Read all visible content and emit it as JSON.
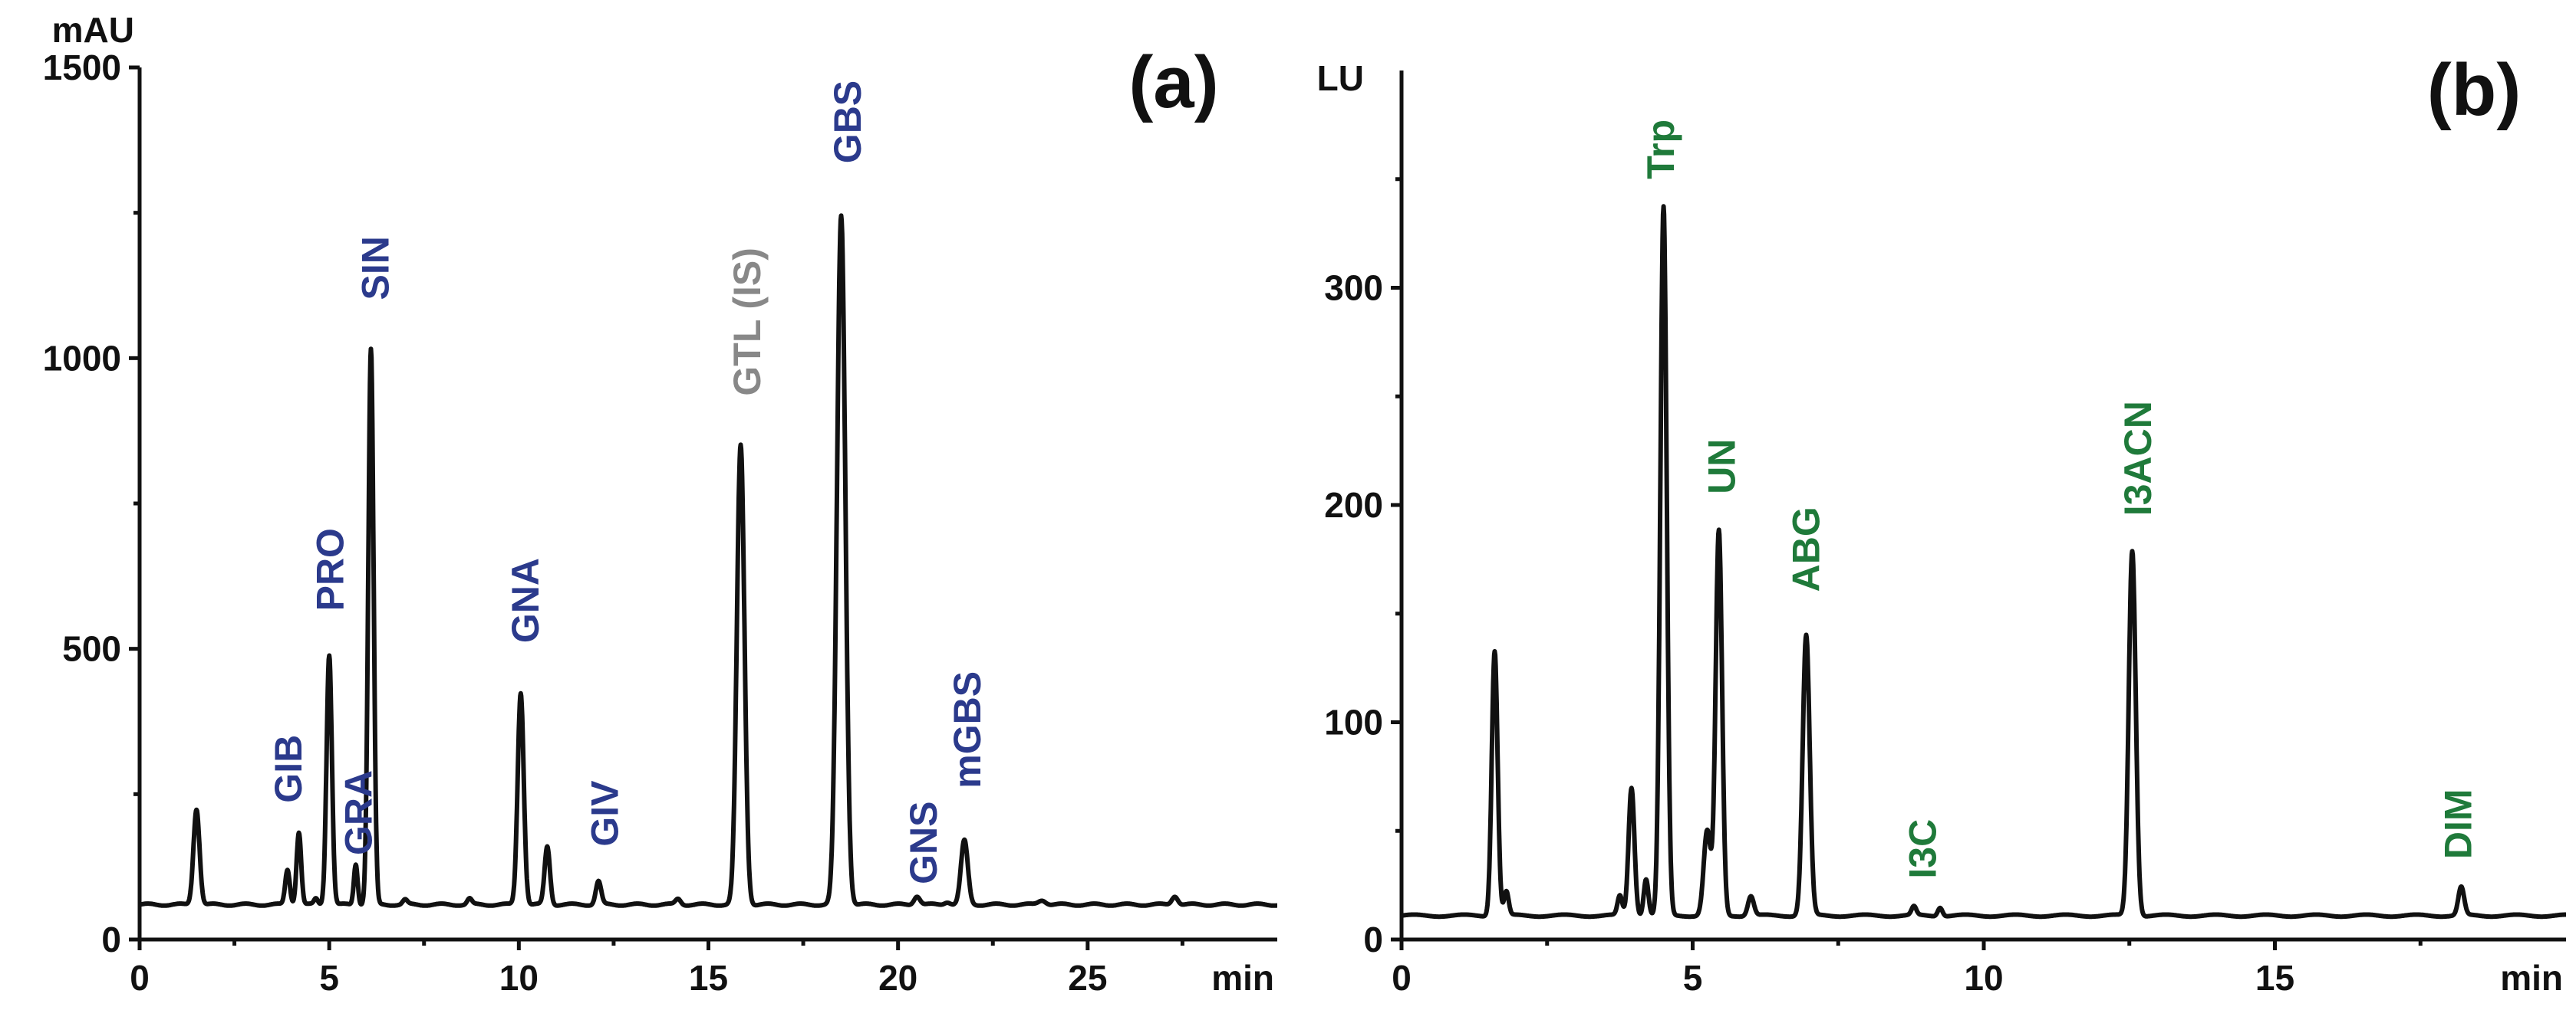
{
  "chart_data": [
    {
      "type": "line",
      "panel_label": "(a)",
      "ylabel": "mAU",
      "xlabel": "min",
      "xlim": [
        0,
        30
      ],
      "ylim": [
        0,
        1500
      ],
      "xticks": [
        0,
        5,
        10,
        15,
        20,
        25
      ],
      "yticks": [
        0,
        500,
        1000,
        1500
      ],
      "baseline": 60,
      "peaks": [
        {
          "x": 1.5,
          "y": 225,
          "w": 0.08
        },
        {
          "x": 3.9,
          "y": 120,
          "w": 0.06
        },
        {
          "x": 4.2,
          "y": 185,
          "w": 0.06
        },
        {
          "x": 4.65,
          "y": 70,
          "w": 0.05
        },
        {
          "x": 5.0,
          "y": 490,
          "w": 0.07
        },
        {
          "x": 5.7,
          "y": 130,
          "w": 0.05
        },
        {
          "x": 6.1,
          "y": 1015,
          "w": 0.07
        },
        {
          "x": 7.0,
          "y": 68,
          "w": 0.06
        },
        {
          "x": 8.7,
          "y": 70,
          "w": 0.06
        },
        {
          "x": 10.05,
          "y": 425,
          "w": 0.08
        },
        {
          "x": 10.75,
          "y": 160,
          "w": 0.07
        },
        {
          "x": 12.1,
          "y": 100,
          "w": 0.07
        },
        {
          "x": 14.2,
          "y": 70,
          "w": 0.07
        },
        {
          "x": 15.85,
          "y": 850,
          "w": 0.1
        },
        {
          "x": 18.5,
          "y": 1245,
          "w": 0.11
        },
        {
          "x": 20.5,
          "y": 75,
          "w": 0.08
        },
        {
          "x": 21.3,
          "y": 65,
          "w": 0.08
        },
        {
          "x": 21.75,
          "y": 170,
          "w": 0.09
        },
        {
          "x": 23.8,
          "y": 68,
          "w": 0.1
        },
        {
          "x": 27.3,
          "y": 75,
          "w": 0.08
        }
      ],
      "annotations": [
        {
          "text": "GIB",
          "x": 4.0,
          "y": 235,
          "color": "#2b3a8c"
        },
        {
          "text": "PRO",
          "x": 5.1,
          "y": 565,
          "color": "#2b3a8c"
        },
        {
          "text": "GRA",
          "x": 5.85,
          "y": 145,
          "color": "#2b3a8c"
        },
        {
          "text": "SIN",
          "x": 6.3,
          "y": 1100,
          "color": "#2b3a8c"
        },
        {
          "text": "GNA",
          "x": 10.25,
          "y": 510,
          "color": "#2b3a8c"
        },
        {
          "text": "GIV",
          "x": 12.35,
          "y": 160,
          "color": "#2b3a8c"
        },
        {
          "text": "GTL (IS)",
          "x": 16.1,
          "y": 935,
          "color": "#888888"
        },
        {
          "text": "GBS",
          "x": 18.75,
          "y": 1335,
          "color": "#2b3a8c"
        },
        {
          "text": "GNS",
          "x": 20.75,
          "y": 95,
          "color": "#2b3a8c"
        },
        {
          "text": "mGBS",
          "x": 21.9,
          "y": 260,
          "color": "#2b3a8c"
        }
      ]
    },
    {
      "type": "line",
      "panel_label": "(b)",
      "ylabel": "LU",
      "xlabel": "min",
      "xlim": [
        0,
        20
      ],
      "ylim": [
        0,
        400
      ],
      "xticks": [
        0,
        5,
        10,
        15
      ],
      "yticks": [
        0,
        100,
        200,
        300
      ],
      "baseline": 11,
      "peaks": [
        {
          "x": 1.6,
          "y": 133,
          "w": 0.05
        },
        {
          "x": 1.8,
          "y": 22,
          "w": 0.04
        },
        {
          "x": 3.75,
          "y": 20,
          "w": 0.04
        },
        {
          "x": 3.95,
          "y": 70,
          "w": 0.05
        },
        {
          "x": 4.2,
          "y": 28,
          "w": 0.04
        },
        {
          "x": 4.5,
          "y": 337,
          "w": 0.055
        },
        {
          "x": 5.25,
          "y": 50,
          "w": 0.06
        },
        {
          "x": 5.45,
          "y": 188,
          "w": 0.055
        },
        {
          "x": 6.0,
          "y": 20,
          "w": 0.05
        },
        {
          "x": 6.95,
          "y": 140,
          "w": 0.06
        },
        {
          "x": 8.8,
          "y": 15,
          "w": 0.04
        },
        {
          "x": 9.25,
          "y": 15,
          "w": 0.04
        },
        {
          "x": 12.55,
          "y": 179,
          "w": 0.06
        },
        {
          "x": 18.2,
          "y": 24,
          "w": 0.05
        }
      ],
      "annotations": [
        {
          "text": "Trp",
          "x": 4.5,
          "y": 350,
          "color": "#1f7a3a"
        },
        {
          "text": "UN",
          "x": 5.55,
          "y": 205,
          "color": "#1f7a3a"
        },
        {
          "text": "ABG",
          "x": 7.0,
          "y": 160,
          "color": "#1f7a3a"
        },
        {
          "text": "I3C",
          "x": 9.0,
          "y": 28,
          "color": "#1f7a3a"
        },
        {
          "text": "I3ACN",
          "x": 12.7,
          "y": 195,
          "color": "#1f7a3a"
        },
        {
          "text": "DIM",
          "x": 18.2,
          "y": 37,
          "color": "#1f7a3a"
        }
      ]
    }
  ]
}
